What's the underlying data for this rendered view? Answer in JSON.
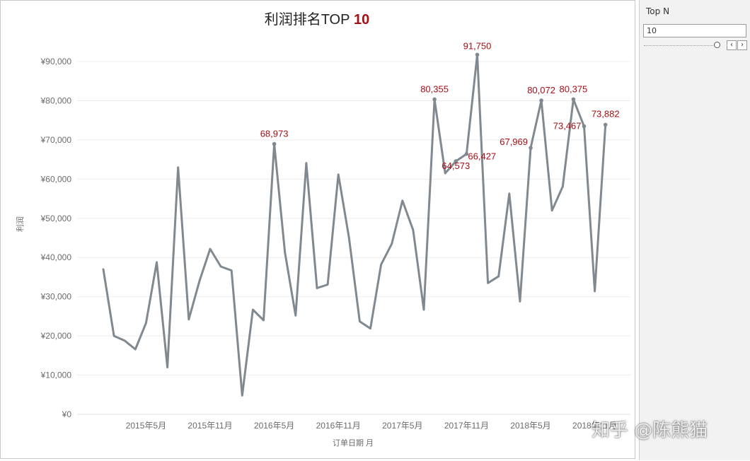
{
  "chart_data": {
    "type": "line",
    "title": "利润排名TOP",
    "title_highlight": "10",
    "xlabel": "订单日期 月",
    "ylabel": "利润",
    "ylim": [
      0,
      100000
    ],
    "yticks": [
      0,
      10000,
      20000,
      30000,
      40000,
      50000,
      60000,
      70000,
      80000,
      90000
    ],
    "ytick_labels": [
      "¥0",
      "¥10,000",
      "¥20,000",
      "¥30,000",
      "¥40,000",
      "¥50,000",
      "¥60,000",
      "¥70,000",
      "¥80,000",
      "¥90,000"
    ],
    "xtick_labels": [
      "2015年5月",
      "2015年11月",
      "2016年5月",
      "2016年11月",
      "2017年5月",
      "2017年11月",
      "2018年5月",
      "2018年11月"
    ],
    "xtick_positions": [
      "2015-05",
      "2015-11",
      "2016-05",
      "2016-11",
      "2017-05",
      "2017-11",
      "2018-05",
      "2018-11"
    ],
    "grid": true,
    "line_color": "#808890",
    "highlight_color": "#a50f15",
    "series": [
      {
        "x": [
          "2015-01",
          "2015-02",
          "2015-03",
          "2015-04",
          "2015-05",
          "2015-06",
          "2015-07",
          "2015-08",
          "2015-09",
          "2015-10",
          "2015-11",
          "2015-12",
          "2016-01",
          "2016-02",
          "2016-03",
          "2016-04",
          "2016-05",
          "2016-06",
          "2016-07",
          "2016-08",
          "2016-09",
          "2016-10",
          "2016-11",
          "2016-12",
          "2017-01",
          "2017-02",
          "2017-03",
          "2017-04",
          "2017-05",
          "2017-06",
          "2017-07",
          "2017-08",
          "2017-09",
          "2017-10",
          "2017-11",
          "2017-12",
          "2018-01",
          "2018-02",
          "2018-03",
          "2018-04",
          "2018-05",
          "2018-06",
          "2018-07",
          "2018-08",
          "2018-09",
          "2018-10",
          "2018-11",
          "2018-12"
        ],
        "values": [
          37000,
          20000,
          18800,
          16600,
          23300,
          38800,
          12000,
          63000,
          24200,
          34000,
          42200,
          37700,
          36700,
          4800,
          26700,
          24000,
          68973,
          41300,
          25200,
          64100,
          32200,
          33100,
          61200,
          45000,
          23700,
          21900,
          38200,
          43500,
          54500,
          47000,
          26700,
          80355,
          61500,
          64573,
          66427,
          91750,
          33500,
          35200,
          56300,
          28800,
          67969,
          80072,
          52000,
          58100,
          80375,
          73467,
          31400,
          73882
        ]
      }
    ],
    "labeled_points": [
      {
        "x": "2016-05",
        "value": 68973,
        "label": "68,973"
      },
      {
        "x": "2017-08",
        "value": 80355,
        "label": "80,355"
      },
      {
        "x": "2017-10",
        "value": 64573,
        "label": "64,573"
      },
      {
        "x": "2017-11",
        "value": 66427,
        "label": "66,427"
      },
      {
        "x": "2017-12",
        "value": 91750,
        "label": "91,750"
      },
      {
        "x": "2018-05",
        "value": 67969,
        "label": "67,969"
      },
      {
        "x": "2018-06",
        "value": 80072,
        "label": "80,072"
      },
      {
        "x": "2018-09",
        "value": 80375,
        "label": "80,375"
      },
      {
        "x": "2018-10",
        "value": 73467,
        "label": "73,467"
      },
      {
        "x": "2018-12",
        "value": 73882,
        "label": "73,882"
      }
    ]
  },
  "control": {
    "title": "Top N",
    "value": "10",
    "prev_icon": "chevron-left-icon",
    "next_icon": "chevron-right-icon"
  },
  "watermark": "知乎 @陈熊猫"
}
